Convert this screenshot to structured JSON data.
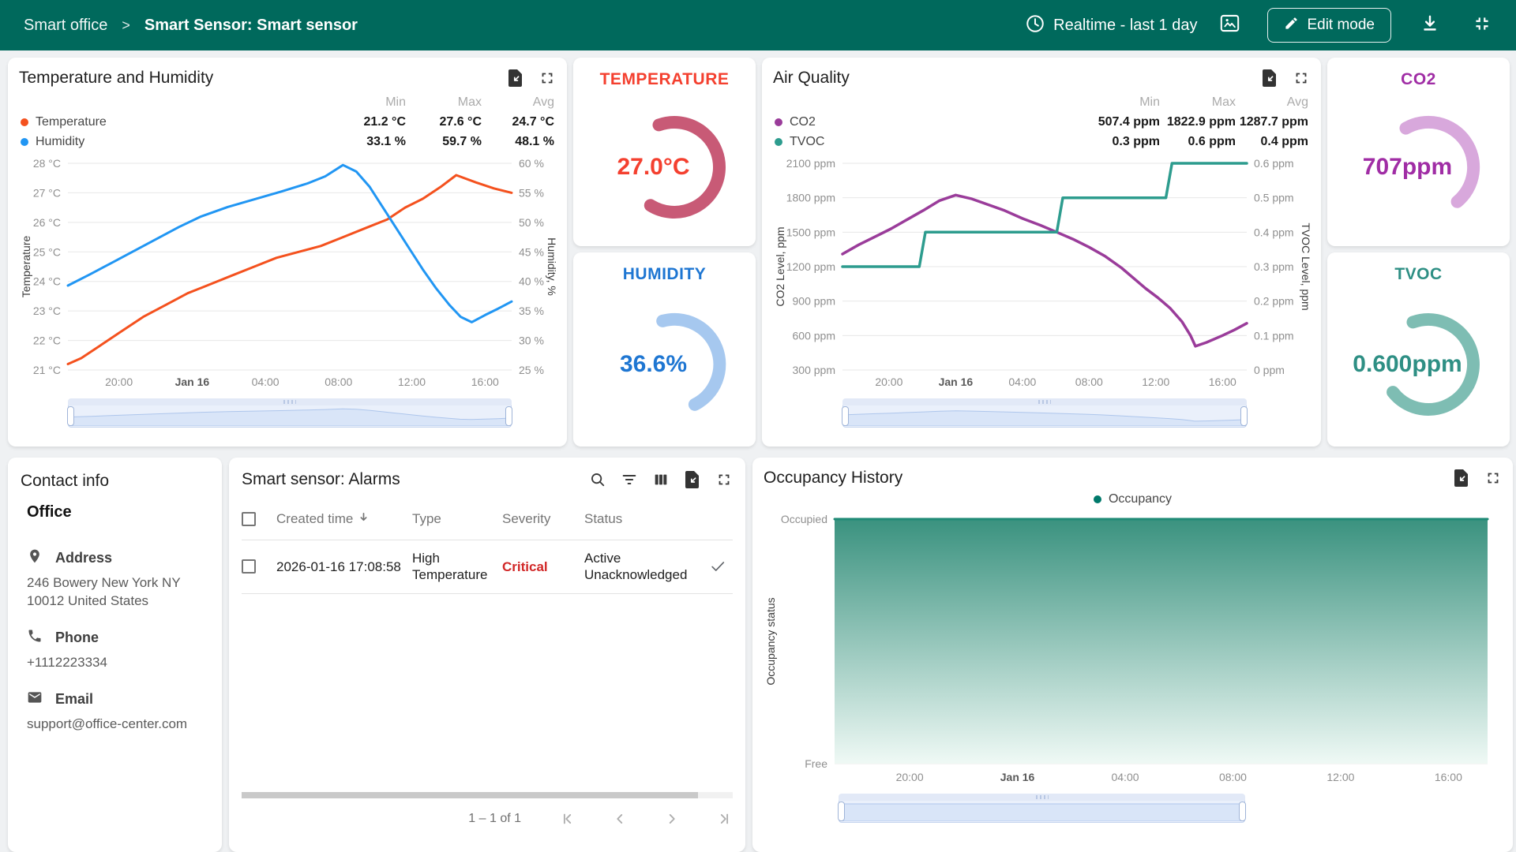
{
  "header": {
    "breadcrumb_root": "Smart office",
    "breadcrumb_separator": ">",
    "breadcrumb_current": "Smart Sensor: Smart sensor",
    "timewindow_label": "Realtime - last 1 day",
    "edit_button_label": "Edit mode",
    "bg_color": "#00695C"
  },
  "widgets": {
    "temp_humidity": {
      "title": "Temperature and Humidity",
      "stats_headers": [
        "Min",
        "Max",
        "Avg"
      ],
      "legend": [
        {
          "label": "Temperature",
          "min": "21.2 °C",
          "max": "27.6 °C",
          "avg": "24.7 °C"
        },
        {
          "label": "Humidity",
          "min": "33.1 %",
          "max": "59.7 %",
          "avg": "48.1 %"
        }
      ]
    },
    "air_quality": {
      "title": "Air Quality",
      "stats_headers": [
        "Min",
        "Max",
        "Avg"
      ],
      "legend": [
        {
          "label": "CO2",
          "min": "507.4 ppm",
          "max": "1822.9 ppm",
          "avg": "1287.7 ppm"
        },
        {
          "label": "TVOC",
          "min": "0.3 ppm",
          "max": "0.6 ppm",
          "avg": "0.4 ppm"
        }
      ]
    },
    "contact": {
      "title": "Contact info",
      "subtitle": "Office",
      "sections": [
        {
          "icon": "location-pin-icon",
          "label": "Address",
          "value": "246 Bowery New York NY 10012 United States"
        },
        {
          "icon": "phone-icon",
          "label": "Phone",
          "value": "+1112223334"
        },
        {
          "icon": "email-icon",
          "label": "Email",
          "value": "support@office-center.com"
        }
      ]
    },
    "alarms": {
      "title": "Smart sensor: Alarms",
      "columns": [
        "Created time",
        "Type",
        "Severity",
        "Status"
      ],
      "rows": [
        {
          "created": "2026-01-16 17:08:58",
          "type": "High Temperature",
          "severity": "Critical",
          "severity_color": "#D12727",
          "status": "Active Unacknowledged"
        }
      ],
      "pagination": "1 – 1 of 1"
    },
    "occupancy": {
      "title": "Occupancy History",
      "legend_label": "Occupancy",
      "legend_color": "#00796B"
    }
  },
  "gauges": [
    {
      "id": "gauge-temperature",
      "title": "TEMPERATURE",
      "value": "27.0°C",
      "text_color": "#F4402F",
      "arc_color": "#C85A76",
      "start_deg": -20,
      "sweep_deg": 232
    },
    {
      "id": "gauge-humidity",
      "title": "HUMIDITY",
      "value": "36.6%",
      "text_color": "#1E76D2",
      "arc_color": "#A6C8EF",
      "start_deg": -15,
      "sweep_deg": 168
    },
    {
      "id": "gauge-co2",
      "title": "CO2",
      "value": "707ppm",
      "text_color": "#A02DA5",
      "arc_color": "#D8A8DC",
      "start_deg": -30,
      "sweep_deg": 170
    },
    {
      "id": "gauge-tvoc",
      "title": "TVOC",
      "value": "0.600ppm",
      "text_color": "#2E8F84",
      "arc_color": "#7EBDB3",
      "start_deg": -20,
      "sweep_deg": 252
    }
  ],
  "chart_data": [
    {
      "id": "chart-temp-humidity",
      "type": "line",
      "title": "Temperature and Humidity",
      "layout": {
        "ml": 62,
        "mr": 56,
        "mt": 10,
        "mb": 28
      },
      "x_ticks": [
        {
          "f": 0.115,
          "label": "20:00"
        },
        {
          "f": 0.28,
          "label": "Jan 16",
          "bold": true
        },
        {
          "f": 0.445,
          "label": "04:00"
        },
        {
          "f": 0.61,
          "label": "08:00"
        },
        {
          "f": 0.775,
          "label": "12:00"
        },
        {
          "f": 0.94,
          "label": "16:00"
        }
      ],
      "left_axis": {
        "title": "Temperature",
        "min": 21,
        "max": 28,
        "tick_labels": [
          "28 °C",
          "27 °C",
          "26 °C",
          "25 °C",
          "24 °C",
          "23 °C",
          "22 °C",
          "21 °C"
        ]
      },
      "right_axis": {
        "title": "Humidity, %",
        "min": 25,
        "max": 60,
        "tick_labels": [
          "60 %",
          "55 %",
          "50 %",
          "45 %",
          "40 %",
          "35 %",
          "30 %",
          "25 %"
        ]
      },
      "preview_series": 1,
      "series": [
        {
          "name": "Temperature",
          "axis": "left",
          "color": "#F4511E",
          "width": 3,
          "points": [
            [
              0,
              21.2
            ],
            [
              0.03,
              21.4
            ],
            [
              0.07,
              21.8
            ],
            [
              0.12,
              22.3
            ],
            [
              0.17,
              22.8
            ],
            [
              0.22,
              23.2
            ],
            [
              0.27,
              23.6
            ],
            [
              0.32,
              23.9
            ],
            [
              0.37,
              24.2
            ],
            [
              0.42,
              24.5
            ],
            [
              0.47,
              24.8
            ],
            [
              0.52,
              25.0
            ],
            [
              0.57,
              25.2
            ],
            [
              0.62,
              25.5
            ],
            [
              0.67,
              25.8
            ],
            [
              0.72,
              26.1
            ],
            [
              0.76,
              26.5
            ],
            [
              0.8,
              26.8
            ],
            [
              0.84,
              27.2
            ],
            [
              0.875,
              27.6
            ],
            [
              0.92,
              27.35
            ],
            [
              0.96,
              27.15
            ],
            [
              1,
              27.0
            ]
          ]
        },
        {
          "name": "Humidity",
          "axis": "right",
          "color": "#2196F3",
          "width": 3,
          "points": [
            [
              0,
              39.3
            ],
            [
              0.05,
              41.2
            ],
            [
              0.1,
              43.2
            ],
            [
              0.15,
              45.2
            ],
            [
              0.2,
              47.2
            ],
            [
              0.25,
              49.2
            ],
            [
              0.3,
              51.0
            ],
            [
              0.36,
              52.6
            ],
            [
              0.42,
              53.9
            ],
            [
              0.48,
              55.2
            ],
            [
              0.54,
              56.6
            ],
            [
              0.58,
              57.8
            ],
            [
              0.62,
              59.7
            ],
            [
              0.65,
              58.6
            ],
            [
              0.68,
              56.0
            ],
            [
              0.71,
              52.5
            ],
            [
              0.74,
              49.0
            ],
            [
              0.77,
              45.5
            ],
            [
              0.8,
              42.0
            ],
            [
              0.83,
              38.8
            ],
            [
              0.86,
              36.0
            ],
            [
              0.885,
              34.0
            ],
            [
              0.91,
              33.1
            ],
            [
              0.94,
              34.3
            ],
            [
              0.97,
              35.4
            ],
            [
              1,
              36.6
            ]
          ]
        }
      ]
    },
    {
      "id": "chart-air-quality",
      "type": "line",
      "title": "Air Quality",
      "layout": {
        "ml": 88,
        "mr": 80,
        "mt": 10,
        "mb": 28
      },
      "x_ticks": [
        {
          "f": 0.115,
          "label": "20:00"
        },
        {
          "f": 0.28,
          "label": "Jan 16",
          "bold": true
        },
        {
          "f": 0.445,
          "label": "04:00"
        },
        {
          "f": 0.61,
          "label": "08:00"
        },
        {
          "f": 0.775,
          "label": "12:00"
        },
        {
          "f": 0.94,
          "label": "16:00"
        }
      ],
      "left_axis": {
        "title": "CO2 Level, ppm",
        "min": 300,
        "max": 2100,
        "tick_labels": [
          "2100 ppm",
          "1800 ppm",
          "1500 ppm",
          "1200 ppm",
          "900 ppm",
          "600 ppm",
          "300 ppm"
        ]
      },
      "right_axis": {
        "title": "TVOC Level, ppm",
        "min": 0,
        "max": 0.6,
        "tick_labels": [
          "0.6 ppm",
          "0.5 ppm",
          "0.4 ppm",
          "0.3 ppm",
          "0.2 ppm",
          "0.1 ppm",
          "0 ppm"
        ]
      },
      "preview_series": 0,
      "series": [
        {
          "name": "CO2",
          "axis": "left",
          "color": "#9A3C9A",
          "width": 3.5,
          "points": [
            [
              0,
              1310
            ],
            [
              0.04,
              1390
            ],
            [
              0.08,
              1460
            ],
            [
              0.12,
              1530
            ],
            [
              0.16,
              1610
            ],
            [
              0.2,
              1690
            ],
            [
              0.24,
              1775
            ],
            [
              0.28,
              1823
            ],
            [
              0.32,
              1790
            ],
            [
              0.36,
              1740
            ],
            [
              0.4,
              1690
            ],
            [
              0.445,
              1620
            ],
            [
              0.49,
              1560
            ],
            [
              0.53,
              1500
            ],
            [
              0.57,
              1440
            ],
            [
              0.61,
              1370
            ],
            [
              0.65,
              1290
            ],
            [
              0.69,
              1190
            ],
            [
              0.72,
              1100
            ],
            [
              0.75,
              1010
            ],
            [
              0.78,
              930
            ],
            [
              0.81,
              840
            ],
            [
              0.84,
              720
            ],
            [
              0.861,
              600
            ],
            [
              0.873,
              507
            ],
            [
              0.9,
              540
            ],
            [
              0.94,
              600
            ],
            [
              0.97,
              650
            ],
            [
              1,
              707
            ]
          ]
        },
        {
          "name": "TVOC",
          "axis": "right",
          "color": "#2D9C8E",
          "width": 3.5,
          "points": [
            [
              0,
              0.3
            ],
            [
              0.19,
              0.3
            ],
            [
              0.205,
              0.4
            ],
            [
              0.53,
              0.4
            ],
            [
              0.545,
              0.5
            ],
            [
              0.8,
              0.5
            ],
            [
              0.815,
              0.6
            ],
            [
              1,
              0.6
            ]
          ]
        }
      ]
    },
    {
      "id": "chart-occupancy",
      "type": "area",
      "title": "Occupancy History",
      "layout": {
        "ml": 90,
        "mr": 16,
        "mt": 12,
        "mb": 30
      },
      "x_ticks": [
        {
          "f": 0.115,
          "label": "20:00"
        },
        {
          "f": 0.28,
          "label": "Jan 16",
          "bold": true
        },
        {
          "f": 0.445,
          "label": "04:00"
        },
        {
          "f": 0.61,
          "label": "08:00"
        },
        {
          "f": 0.775,
          "label": "12:00"
        },
        {
          "f": 0.94,
          "label": "16:00"
        }
      ],
      "left_axis": {
        "title": "Occupancy status",
        "min": 0,
        "max": 1,
        "tick_labels": [
          "Occupied",
          "Free"
        ]
      },
      "preview_series": 0,
      "series": [
        {
          "name": "Occupancy",
          "axis": "left",
          "color": "#1F8A76",
          "width": 3,
          "fill_top": "#3A927F",
          "fill_bottom": "#EFF9F5",
          "points": [
            [
              0,
              1
            ],
            [
              1,
              1
            ]
          ]
        }
      ]
    }
  ]
}
